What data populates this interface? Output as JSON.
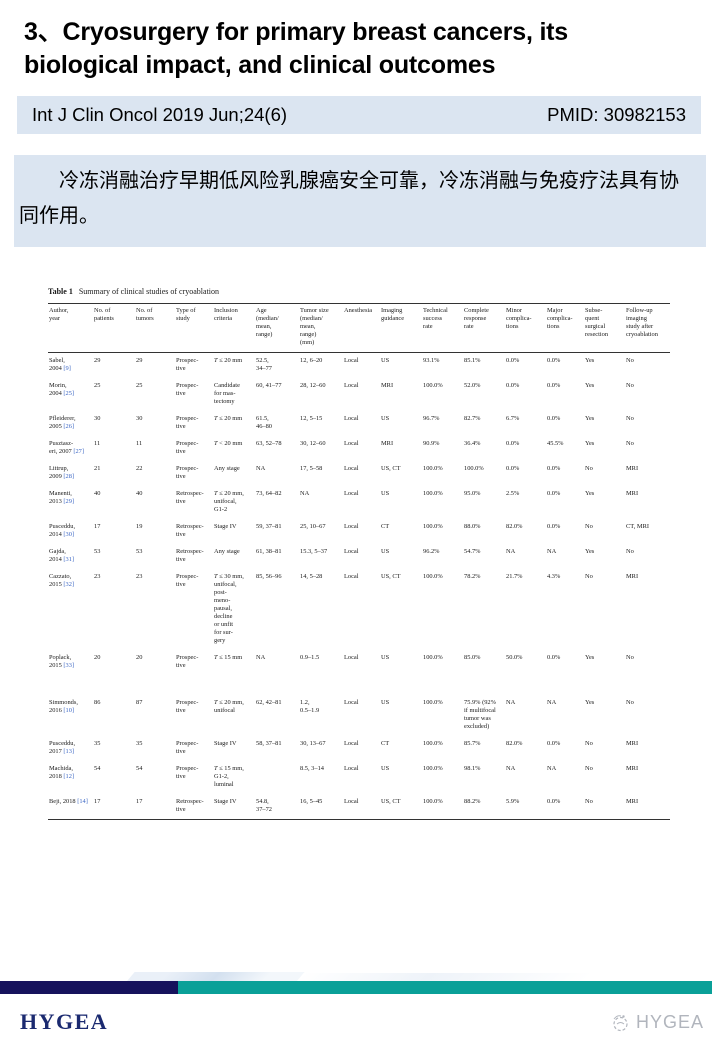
{
  "slide": {
    "title": "3、Cryosurgery for primary breast cancers, its biological impact, and clinical outcomes",
    "journal": "Int J Clin Oncol 2019 Jun;24(6)",
    "pmid": "PMID: 30982153",
    "summary_cn": "冷冻消融治疗早期低风险乳腺癌安全可靠，冷冻消融与免疫疗法具有协同作用。"
  },
  "table": {
    "caption_label": "Table 1",
    "caption_text": "Summary of clinical studies of cryoablation",
    "columns": [
      "Author,\nyear",
      "No. of\npatients",
      "No. of\ntumors",
      "Type of\nstudy",
      "Inclusion\ncriteria",
      "Age\n(median/\nmean,\nrange)",
      "Tumor size\n(median/\nmean,\nrange)\n(mm)",
      "Anesthesia",
      "Imaging\nguidance",
      "Technical\nsuccess\nrate",
      "Complete\nresponse\nrate",
      "Minor\ncomplica-\ntions",
      "Major\ncomplica-\ntions",
      "Subse-\nquent\nsurgical\nresection",
      "Follow-up\nimaging\nstudy after\ncryoablation"
    ],
    "rows": [
      {
        "author": "Sabel,\n2004",
        "ref": "[9]",
        "patients": "29",
        "tumors": "29",
        "type": "Prospec-\ntive",
        "inclusion": "T ≤ 20 mm",
        "age": "52.5,\n34–77",
        "size": "12, 6–20",
        "anesthesia": "Local",
        "imaging": "US",
        "technical": "93.1%",
        "complete": "85.1%",
        "minor": "0.0%",
        "major": "0.0%",
        "resection": "Yes",
        "followup": "No"
      },
      {
        "author": "Morin,\n2004",
        "ref": "[25]",
        "patients": "25",
        "tumors": "25",
        "type": "Prospec-\ntive",
        "inclusion": "Candidate\nfor mas-\ntectomy",
        "age": "60, 41–77",
        "size": "28, 12–60",
        "anesthesia": "Local",
        "imaging": "MRI",
        "technical": "100.0%",
        "complete": "52.0%",
        "minor": "0.0%",
        "major": "0.0%",
        "resection": "Yes",
        "followup": "No"
      },
      {
        "author": "Pfleiderer,\n2005",
        "ref": "[26]",
        "patients": "30",
        "tumors": "30",
        "type": "Prospec-\ntive",
        "inclusion": "T ≤ 20 mm",
        "age": "61.5,\n46–80",
        "size": "12, 5–15",
        "anesthesia": "Local",
        "imaging": "US",
        "technical": "96.7%",
        "complete": "82.7%",
        "minor": "6.7%",
        "major": "0.0%",
        "resection": "Yes",
        "followup": "No"
      },
      {
        "author": "Pusztasz-\neri, 2007",
        "ref": "[27]",
        "patients": "11",
        "tumors": "11",
        "type": "Prospec-\ntive",
        "inclusion": "T < 20 mm",
        "age": "63, 52–78",
        "size": "30, 12–60",
        "anesthesia": "Local",
        "imaging": "MRI",
        "technical": "90.9%",
        "complete": "36.4%",
        "minor": "0.0%",
        "major": "45.5%",
        "resection": "Yes",
        "followup": "No"
      },
      {
        "author": "Littrup,\n2009",
        "ref": "[28]",
        "patients": "21",
        "tumors": "22",
        "type": "Prospec-\ntive",
        "inclusion": "Any stage",
        "age": "NA",
        "size": "17, 5–58",
        "anesthesia": "Local",
        "imaging": "US, CT",
        "technical": "100.0%",
        "complete": "100.0%",
        "minor": "0.0%",
        "major": "0.0%",
        "resection": "No",
        "followup": "MRI"
      },
      {
        "author": "Manenti,\n2013",
        "ref": "[29]",
        "patients": "40",
        "tumors": "40",
        "type": "Retrospec-\ntive",
        "inclusion": "T ≤ 20 mm,\nunifocal,\nG1-2",
        "age": "73, 64–82",
        "size": "NA",
        "anesthesia": "Local",
        "imaging": "US",
        "technical": "100.0%",
        "complete": "95.0%",
        "minor": "2.5%",
        "major": "0.0%",
        "resection": "Yes",
        "followup": "MRI"
      },
      {
        "author": "Pusceddu,\n2014",
        "ref": "[30]",
        "patients": "17",
        "tumors": "19",
        "type": "Retrospec-\ntive",
        "inclusion": "Stage IV",
        "age": "59, 37–81",
        "size": "25, 10–67",
        "anesthesia": "Local",
        "imaging": "CT",
        "technical": "100.0%",
        "complete": "88.0%",
        "minor": "82.0%",
        "major": "0.0%",
        "resection": "No",
        "followup": "CT, MRI"
      },
      {
        "author": "Gajda,\n2014",
        "ref": "[31]",
        "patients": "53",
        "tumors": "53",
        "type": "Retrospec-\ntive",
        "inclusion": "Any stage",
        "age": "61, 38–81",
        "size": "15.3, 5–37",
        "anesthesia": "Local",
        "imaging": "US",
        "technical": "96.2%",
        "complete": "54.7%",
        "minor": "NA",
        "major": "NA",
        "resection": "Yes",
        "followup": "No"
      },
      {
        "author": "Cazzato,\n2015",
        "ref": "[32]",
        "patients": "23",
        "tumors": "23",
        "type": "Prospec-\ntive",
        "inclusion": "T ≤ 30 mm,\nunifocal,\npost-\nmeno-\npausal,\ndecline\nor unfit\nfor sur-\ngery",
        "age": "85, 56–96",
        "size": "14, 5–28",
        "anesthesia": "Local",
        "imaging": "US, CT",
        "technical": "100.0%",
        "complete": "78.2%",
        "minor": "21.7%",
        "major": "4.3%",
        "resection": "No",
        "followup": "MRI"
      },
      {
        "author": "Poplack,\n2015",
        "ref": "[33]",
        "patients": "20",
        "tumors": "20",
        "type": "Prospec-\ntive",
        "inclusion": "T ≤ 15 mm",
        "age": "NA",
        "size": "0.9–1.5",
        "anesthesia": "Local",
        "imaging": "US",
        "technical": "100.0%",
        "complete": "85.0%",
        "minor": "50.0%",
        "major": "0.0%",
        "resection": "Yes",
        "followup": "No"
      },
      {
        "gap": true,
        "author": "Simmonds,\n2016",
        "ref": "[10]",
        "patients": "86",
        "tumors": "87",
        "type": "Prospec-\ntive",
        "inclusion": "T ≤ 20 mm,\nunifocal",
        "age": "62, 42–81",
        "size": "1.2,\n0.5–1.9",
        "anesthesia": "Local",
        "imaging": "US",
        "technical": "100.0%",
        "complete": "75.9% (92%\nif multifocal\ntumor was\nexcluded)",
        "minor": "NA",
        "major": "NA",
        "resection": "Yes",
        "followup": "No"
      },
      {
        "author": "Pusceddu,\n2017",
        "ref": "[13]",
        "patients": "35",
        "tumors": "35",
        "type": "Prospec-\ntive",
        "inclusion": "Stage IV",
        "age": "58, 37–81",
        "size": "30, 13–67",
        "anesthesia": "Local",
        "imaging": "CT",
        "technical": "100.0%",
        "complete": "85.7%",
        "minor": "82.0%",
        "major": "0.0%",
        "resection": "No",
        "followup": "MRI"
      },
      {
        "author": "Machida,\n2018",
        "ref": "[12]",
        "patients": "54",
        "tumors": "54",
        "type": "Prospec-\ntive",
        "inclusion": "T ≤ 15 mm,\nG1-2,\nluminal",
        "age": "",
        "size": "8.5, 3–14",
        "anesthesia": "Local",
        "imaging": "US",
        "technical": "100.0%",
        "complete": "98.1%",
        "minor": "NA",
        "major": "NA",
        "resection": "No",
        "followup": "MRI"
      },
      {
        "author": "Beji, 2018",
        "ref": "[14]",
        "patients": "17",
        "tumors": "17",
        "type": "Retrospec-\ntive",
        "inclusion": "Stage IV",
        "age": "54.8,\n37–72",
        "size": "16, 5–45",
        "anesthesia": "Local",
        "imaging": "US, CT",
        "technical": "100.0%",
        "complete": "88.2%",
        "minor": "5.9%",
        "major": "0.0%",
        "resection": "No",
        "followup": "MRI"
      }
    ]
  },
  "footer": {
    "logo": "HYGEA",
    "watermark": "HYGEA"
  },
  "colors": {
    "accent_light_blue": "#dbe5f1",
    "bar_navy": "#16125c",
    "bar_teal": "#0aa098",
    "reference_link_blue": "#3b66c4",
    "watermark_gray": "#a9aeb6"
  }
}
